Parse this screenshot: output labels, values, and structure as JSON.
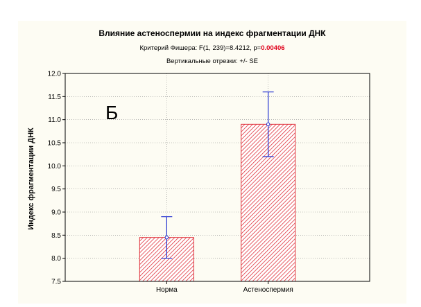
{
  "chart_data": {
    "type": "bar",
    "title": "Влияние астеноспермии на индекс фрагментации ДНК",
    "subtitle_prefix": "Критерий Фишера: F(1, 239)=8.4212, p=",
    "p_value": "0.00406",
    "subtitle2": "Вертикальные отрезки: +/- SE",
    "panel_label": "Б",
    "ylabel": "Индекс фрагментации ДНК",
    "xlabel": "",
    "categories": [
      "Норма",
      "Астеноспермия"
    ],
    "values": [
      8.45,
      10.9
    ],
    "error_low": [
      8.0,
      10.2
    ],
    "error_high": [
      8.9,
      11.6
    ],
    "ylim": [
      7.5,
      12.0
    ],
    "yticks": [
      "7.5",
      "8.0",
      "8.5",
      "9.0",
      "9.5",
      "10.0",
      "10.5",
      "11.0",
      "11.5",
      "12.0"
    ],
    "grid": true,
    "colors": {
      "bar_stroke": "#e0303a",
      "bar_hatch": "#e0303a",
      "error_bar": "#1f2fd0",
      "p_value": "#e0001a",
      "grid": "#8a8a8a",
      "panel_bg": "#fdfcf3"
    }
  }
}
